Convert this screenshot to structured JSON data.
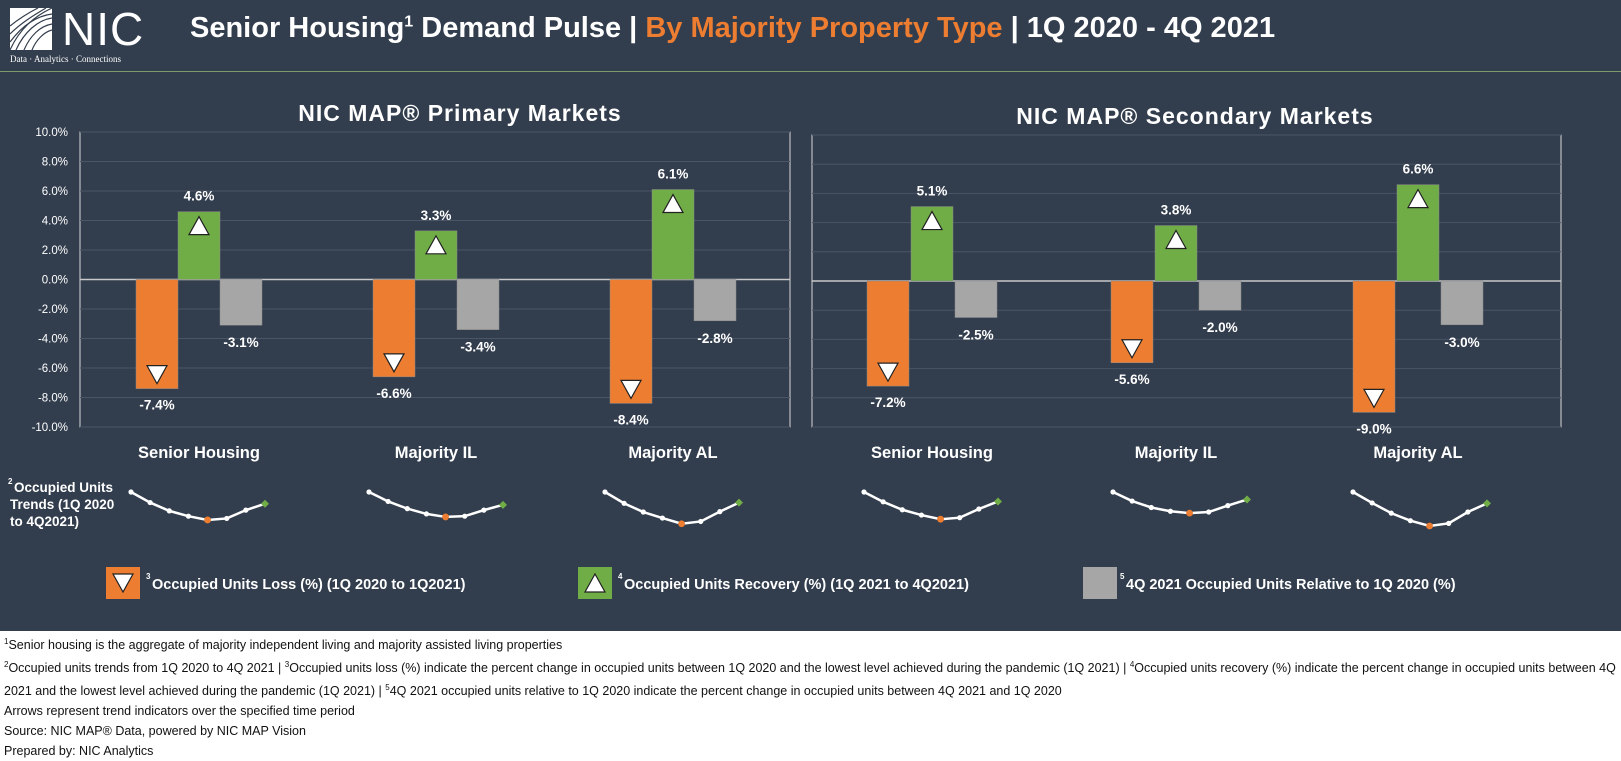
{
  "header": {
    "logo_text": "NIC",
    "logo_tagline": "Data · Analytics · Connections",
    "title_part1": "Senior Housing",
    "title_sup": "1",
    "title_part2": " Demand Pulse | ",
    "title_highlight": "By Majority Property Type",
    "title_part3": " | 1Q 2020 - 4Q 2021"
  },
  "colors": {
    "background": "#323d4d",
    "loss": "#ed7d31",
    "recovery": "#70ad47",
    "relative": "#a6a6a6",
    "title_highlight": "#ed7d31"
  },
  "chart_data": [
    {
      "type": "bar",
      "title": "NIC MAP® Primary Markets",
      "categories": [
        "Senior Housing",
        "Majority IL",
        "Majority AL"
      ],
      "ylim": [
        -10,
        10
      ],
      "yticks": [
        "10.0%",
        "8.0%",
        "6.0%",
        "4.0%",
        "2.0%",
        "0.0%",
        "-2.0%",
        "-4.0%",
        "-6.0%",
        "-8.0%",
        "-10.0%"
      ],
      "grid": true,
      "series": [
        {
          "name": "Occupied Units Loss (%) (1Q 2020 to 1Q2021)",
          "values": [
            -7.4,
            -6.6,
            -8.4
          ],
          "labels": [
            "-7.4%",
            "-6.6%",
            "-8.4%"
          ]
        },
        {
          "name": "Occupied Units Recovery (%) (1Q 2021 to 4Q2021)",
          "values": [
            4.6,
            3.3,
            6.1
          ],
          "labels": [
            "4.6%",
            "3.3%",
            "6.1%"
          ]
        },
        {
          "name": "4Q 2021 Occupied Units Relative to 1Q 2020 (%)",
          "values": [
            -3.1,
            -3.4,
            -2.8
          ],
          "labels": [
            "-3.1%",
            "-3.4%",
            "-2.8%"
          ]
        }
      ]
    },
    {
      "type": "bar",
      "title": "NIC MAP® Secondary Markets",
      "categories": [
        "Senior Housing",
        "Majority IL",
        "Majority AL"
      ],
      "ylim": [
        -10,
        10
      ],
      "grid": true,
      "series": [
        {
          "name": "Occupied Units Loss (%) (1Q 2020 to 1Q2021)",
          "values": [
            -7.2,
            -5.6,
            -9.0
          ],
          "labels": [
            "-7.2%",
            "-5.6%",
            "-9.0%"
          ]
        },
        {
          "name": "Occupied Units Recovery (%) (1Q 2021 to 4Q2021)",
          "values": [
            5.1,
            3.8,
            6.6
          ],
          "labels": [
            "5.1%",
            "3.8%",
            "6.6%"
          ]
        },
        {
          "name": "4Q 2021 Occupied Units Relative to 1Q 2020 (%)",
          "values": [
            -2.5,
            -2.0,
            -3.0
          ],
          "labels": [
            "-2.5%",
            "-2.0%",
            "-3.0%"
          ]
        }
      ]
    }
  ],
  "trends": {
    "label_sup": "2",
    "label_lines": [
      "Occupied Units",
      "Trends (1Q 2020",
      "to 4Q2021)"
    ],
    "min_index": 4,
    "series": [
      [
        100,
        97.2,
        95.0,
        93.6,
        92.6,
        93.0,
        95.2,
        96.9
      ],
      [
        100,
        97.5,
        95.6,
        94.2,
        93.4,
        93.6,
        95.2,
        96.6
      ],
      [
        100,
        97.0,
        94.7,
        93.1,
        91.6,
        92.2,
        94.8,
        97.2
      ],
      [
        100,
        97.4,
        95.3,
        93.9,
        92.8,
        93.2,
        95.5,
        97.5
      ],
      [
        100,
        97.6,
        95.9,
        94.9,
        94.4,
        94.7,
        96.4,
        98.0
      ],
      [
        100,
        97.1,
        94.4,
        92.4,
        91.0,
        91.7,
        94.7,
        97.0
      ]
    ]
  },
  "legend": [
    {
      "mark": "3",
      "label": "Occupied Units Loss (%) (1Q 2020 to 1Q2021)",
      "color": "#ed7d31",
      "icon": "triangle-down-icon"
    },
    {
      "mark": "4",
      "label": "Occupied Units Recovery (%) (1Q 2021 to 4Q2021)",
      "color": "#70ad47",
      "icon": "triangle-up-icon"
    },
    {
      "mark": "5",
      "label": "4Q 2021 Occupied Units Relative to 1Q 2020 (%)",
      "color": "#a6a6a6",
      "icon": "square-icon"
    }
  ],
  "footnotes": {
    "f1_mark": "1",
    "f1": "Senior housing is the aggregate of majority independent living and majority assisted living properties",
    "f2_mark": "2",
    "f2a": "Occupied units trends from 1Q 2020 to 4Q 2021 | ",
    "f3_mark": "3",
    "f2b": "Occupied units loss (%) indicate the percent change in occupied units between 1Q 2020 and the lowest level achieved during the pandemic (1Q 2021) | ",
    "f4_mark": "4",
    "f2c": "Occupied units recovery (%) indicate the percent change in occupied units between 4Q 2021 and the lowest level achieved during the pandemic (1Q 2021) | ",
    "f5_mark": "5",
    "f2d": "4Q 2021 occupied units relative to 1Q 2020 indicate the percent change in occupied units between 4Q 2021 and 1Q 2020",
    "arrows": "Arrows represent trend indicators over the specified time period",
    "source": "Source: NIC MAP® Data, powered by NIC MAP Vision",
    "prepared": "Prepared by: NIC Analytics"
  }
}
